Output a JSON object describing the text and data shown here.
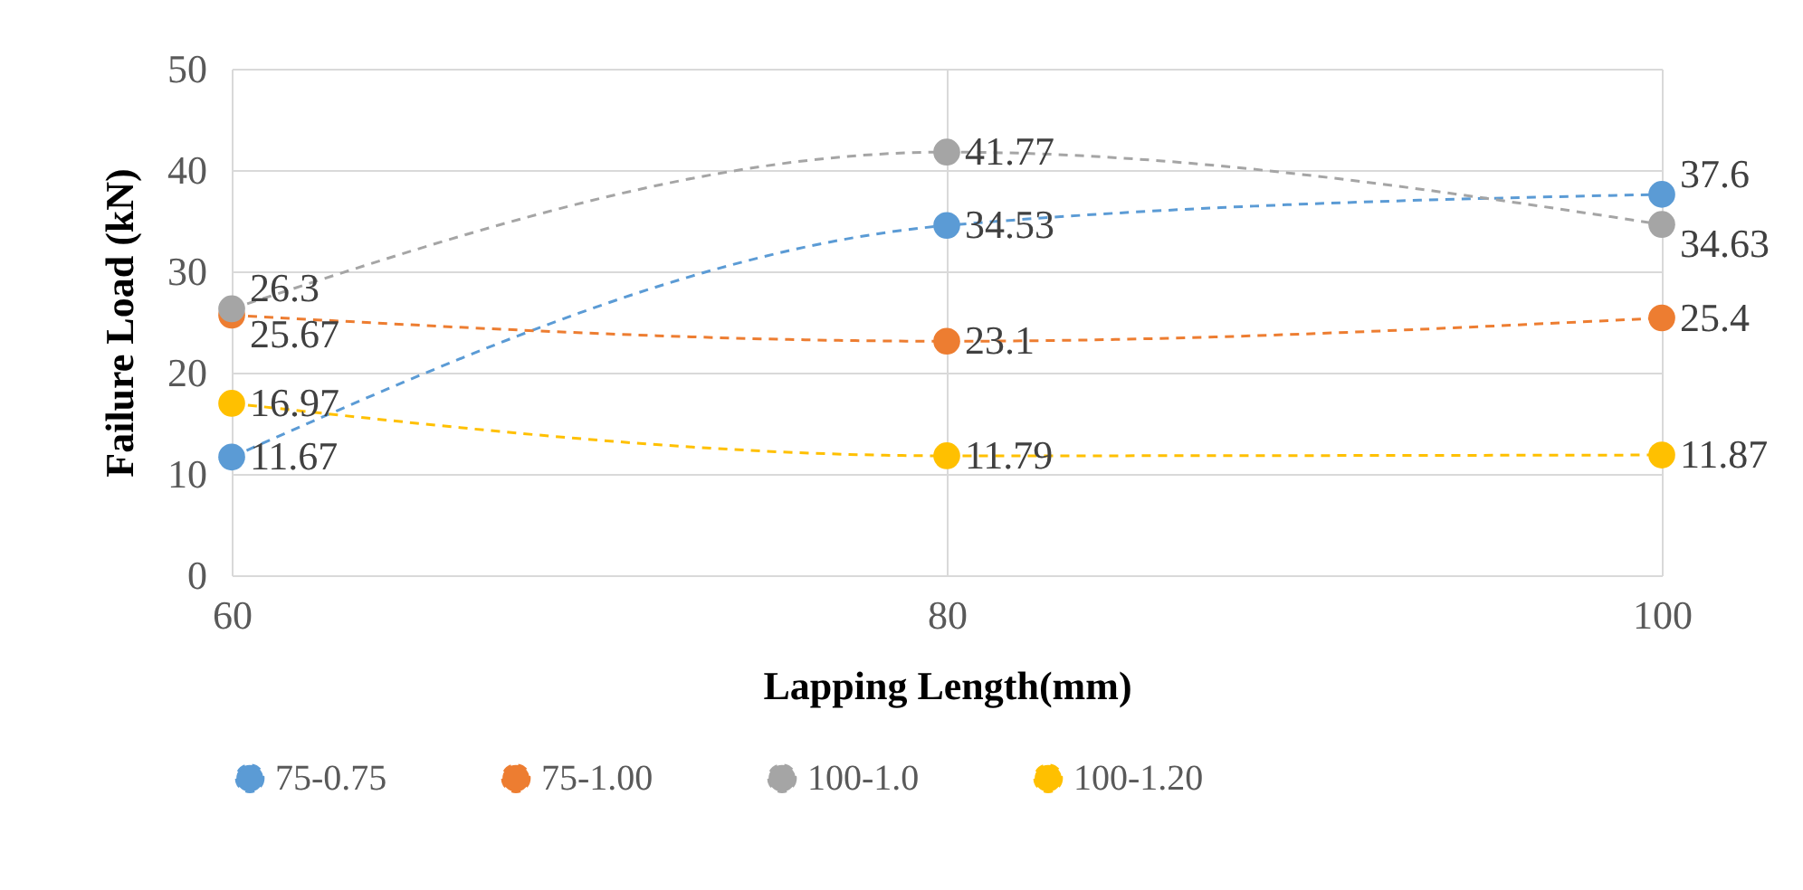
{
  "chart_data": {
    "type": "line",
    "xlabel": "Lapping Length(mm)",
    "ylabel": "Failure Load (kN)",
    "x": [
      60,
      80,
      100
    ],
    "series": [
      {
        "name": "75-0.75",
        "color": "#5b9bd5",
        "values": [
          11.67,
          34.53,
          37.6
        ]
      },
      {
        "name": "75-1.00",
        "color": "#ed7d31",
        "values": [
          25.67,
          23.1,
          25.4
        ]
      },
      {
        "name": "100-1.0",
        "color": "#a5a5a5",
        "values": [
          26.3,
          41.77,
          34.63
        ]
      },
      {
        "name": "100-1.20",
        "color": "#ffc000",
        "values": [
          16.97,
          11.79,
          11.87
        ]
      }
    ],
    "xlim": [
      60,
      100
    ],
    "xticks": [
      60,
      80,
      100
    ],
    "ylim": [
      0,
      50
    ],
    "yticks": [
      0,
      10,
      20,
      30,
      40,
      50
    ],
    "grid": true,
    "legend": "bottom",
    "marker": "circle",
    "line_style": "dashed",
    "data_labels": true
  }
}
